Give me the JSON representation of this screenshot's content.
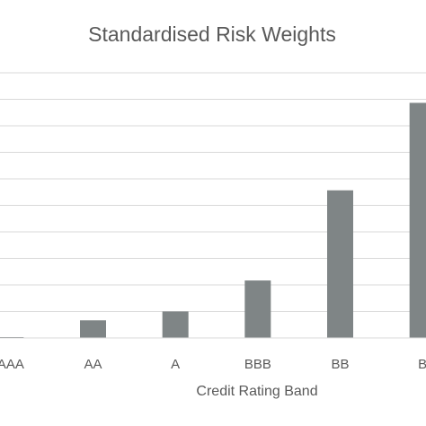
{
  "chart_data": {
    "type": "bar",
    "title": "Standardised Risk Weights",
    "xlabel": "Credit Rating Band",
    "ylabel": "",
    "categories": [
      "AAA",
      "AA",
      "A",
      "BBB",
      "BB",
      "B"
    ],
    "values": [
      0.1,
      2,
      3,
      6.5,
      16.7,
      26.6
    ],
    "ylim": [
      0,
      30
    ],
    "grid": true,
    "legend": "none",
    "colors": {
      "bar": "#7f8586",
      "grid": "#d9d9d9",
      "axis": "#d9d9d9",
      "text": "#595959"
    }
  }
}
